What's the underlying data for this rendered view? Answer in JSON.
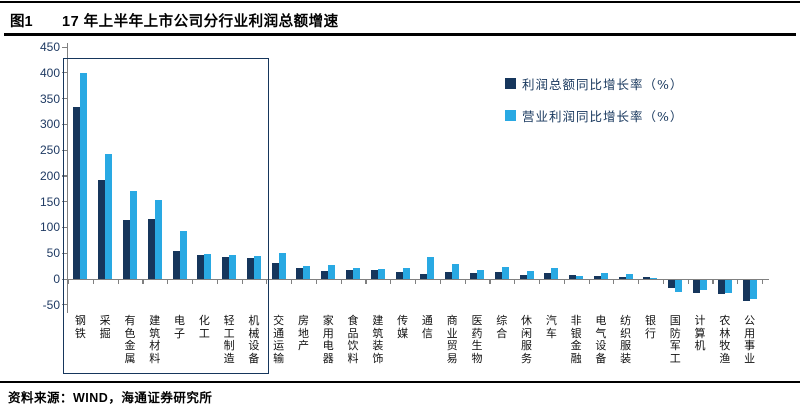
{
  "header": {
    "figure_label": "图1",
    "title": "17 年上半年上市公司分行业利润总额增速"
  },
  "legend": [
    {
      "label": "利润总额同比增长率（%）",
      "color": "#16365c"
    },
    {
      "label": "营业利润同比增长率（%）",
      "color": "#29a9e3"
    }
  ],
  "source": "资料来源：WIND，海通证券研究所",
  "chart_data": {
    "type": "bar",
    "title": "17 年上半年上市公司分行业利润总额增速",
    "xlabel": "",
    "ylabel": "",
    "ylim": [
      -50,
      450
    ],
    "yticks": [
      450,
      400,
      350,
      300,
      250,
      200,
      150,
      100,
      50,
      0,
      -50
    ],
    "grid": false,
    "legend_position": "top-right",
    "categories": [
      "钢铁",
      "采掘",
      "有色金属",
      "建筑材料",
      "电子",
      "化工",
      "轻工制造",
      "机械设备",
      "交通运输",
      "房地产",
      "家用电器",
      "食品饮料",
      "建筑装饰",
      "传媒",
      "通信",
      "商业贸易",
      "医药生物",
      "综合",
      "休闲服务",
      "汽车",
      "非银金融",
      "电气设备",
      "纺织服装",
      "银行",
      "国防军工",
      "计算机",
      "农林牧渔",
      "公用事业"
    ],
    "series": [
      {
        "name": "利润总额同比增长率（%）",
        "color": "#16365c",
        "values": [
          333,
          192,
          115,
          117,
          54,
          46,
          43,
          40,
          31,
          22,
          16,
          18,
          18,
          13,
          10,
          14,
          12,
          14,
          8,
          12,
          8,
          6,
          4,
          3,
          -14,
          -24,
          -27,
          -40
        ]
      },
      {
        "name": "营业利润同比增长率（%）",
        "color": "#29a9e3",
        "values": [
          400,
          242,
          170,
          153,
          94,
          49,
          47,
          45,
          50,
          25,
          27,
          21,
          19,
          22,
          43,
          29,
          18,
          24,
          16,
          22,
          5,
          11,
          10,
          2,
          -22,
          -19,
          -25,
          -36
        ]
      }
    ],
    "highlight_box": {
      "from_category": "钢铁",
      "to_category": "机械设备"
    }
  }
}
